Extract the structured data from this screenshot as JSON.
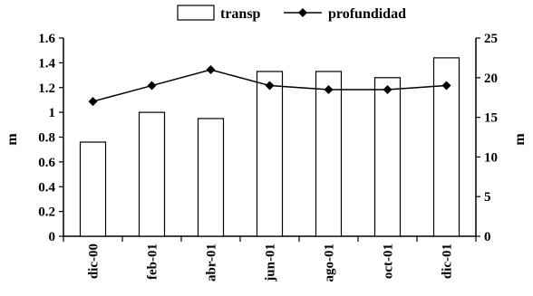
{
  "chart_data": {
    "type": "bar",
    "categories": [
      "dic-00",
      "feb-01",
      "abr-01",
      "jun-01",
      "ago-01",
      "oct-01",
      "dic-01"
    ],
    "series": [
      {
        "name": "transp",
        "type": "bar",
        "axis": "left",
        "values": [
          0.76,
          1.0,
          0.95,
          1.33,
          1.33,
          1.28,
          1.44
        ]
      },
      {
        "name": "profundidad",
        "type": "line",
        "axis": "right",
        "marker": "diamond",
        "values": [
          17,
          19,
          21,
          19,
          18.5,
          18.5,
          19
        ]
      }
    ],
    "left_axis": {
      "label": "m",
      "ylim": [
        0,
        1.6
      ],
      "ticks": [
        "0",
        "0.2",
        "0.4",
        "0.6",
        "0.8",
        "1",
        "1.2",
        "1.4",
        "1.6"
      ]
    },
    "right_axis": {
      "label": "m",
      "ylim": [
        0,
        25
      ],
      "ticks": [
        "0",
        "5",
        "10",
        "15",
        "20",
        "25"
      ]
    },
    "legend": {
      "placement": "top",
      "entries": [
        "transp",
        "profundidad"
      ]
    },
    "grid": false,
    "colors": {
      "bar_fill": "#ffffff",
      "bar_stroke": "#000000",
      "line": "#000000"
    }
  }
}
